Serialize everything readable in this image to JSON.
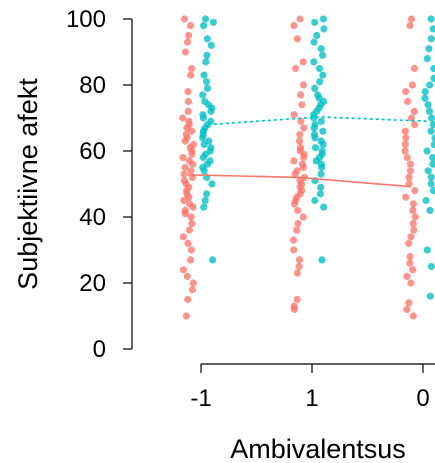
{
  "chart_data": {
    "type": "scatter",
    "title": "",
    "xlabel": "Ambivalentsus",
    "ylabel": "Subjektiivne afekt",
    "categories": [
      "-1",
      "1",
      "0"
    ],
    "ylim": [
      0,
      100
    ],
    "yticks": [
      0,
      20,
      40,
      60,
      80,
      100
    ],
    "grid": false,
    "legend": "none",
    "series": [
      {
        "color": "#F8766D",
        "line_style": "solid",
        "trend": [
          52.8,
          52.0,
          49.2
        ],
        "points": [
          [
            100,
            98,
            95,
            93,
            90,
            85,
            83,
            78,
            75,
            72,
            70,
            69,
            68,
            67,
            66,
            65,
            64,
            63,
            62,
            61,
            60,
            59,
            58,
            57,
            56,
            55,
            54,
            53,
            52,
            51,
            50,
            49,
            48,
            47,
            46,
            45,
            44,
            43,
            42,
            41,
            40,
            38,
            36,
            34,
            32,
            30,
            27,
            24,
            22,
            20,
            18,
            15,
            10
          ],
          [
            100,
            98,
            94,
            87,
            85,
            80,
            77,
            74,
            71,
            69,
            67,
            65,
            63,
            61,
            60,
            59,
            58,
            57,
            56,
            55,
            54,
            53,
            52,
            51,
            50,
            49,
            48,
            47,
            46,
            45,
            44,
            42,
            40,
            38,
            36,
            33,
            30,
            27,
            25,
            23,
            15,
            13,
            12
          ],
          [
            100,
            98,
            85,
            80,
            78,
            75,
            72,
            70,
            68,
            66,
            64,
            62,
            60,
            58,
            56,
            54,
            52,
            50,
            48,
            46,
            44,
            42,
            40,
            38,
            36,
            34,
            32,
            28,
            26,
            24,
            22,
            20,
            14,
            12,
            10
          ]
        ]
      },
      {
        "color": "#00BFC4",
        "line_style": "dashed",
        "trend": [
          68.0,
          70.3,
          69.0
        ],
        "points": [
          [
            100,
            99,
            98,
            94,
            92,
            89,
            87,
            83,
            81,
            79,
            77,
            75,
            74,
            73,
            72,
            71,
            70,
            69,
            68,
            67,
            66,
            65,
            64,
            63,
            62,
            61,
            60,
            59,
            58,
            57,
            56,
            55,
            54,
            52,
            50,
            47,
            45,
            43,
            27
          ],
          [
            100,
            99,
            97,
            95,
            93,
            91,
            89,
            87,
            85,
            83,
            81,
            79,
            77,
            76,
            75,
            74,
            73,
            72,
            71,
            70,
            69,
            68,
            67,
            66,
            65,
            64,
            63,
            62,
            61,
            60,
            59,
            58,
            57,
            56,
            55,
            53,
            51,
            49,
            47,
            45,
            43,
            27
          ],
          [
            100,
            97,
            94,
            91,
            88,
            85,
            82,
            80,
            78,
            76,
            74,
            72,
            70,
            68,
            66,
            64,
            62,
            60,
            58,
            56,
            54,
            52,
            50,
            48,
            45,
            42,
            30,
            25,
            16
          ]
        ]
      }
    ]
  }
}
